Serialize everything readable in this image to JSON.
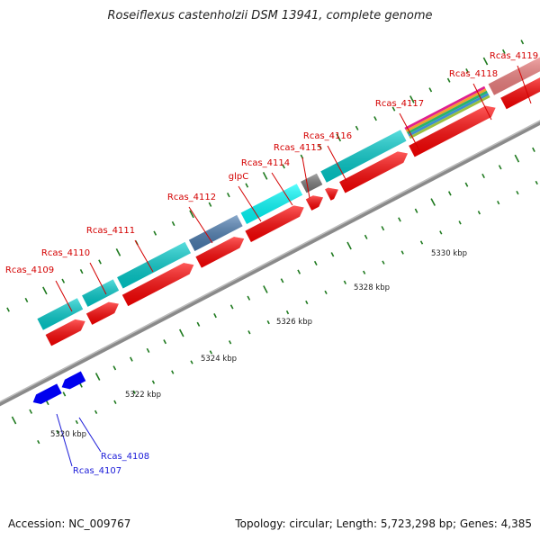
{
  "title": "Roseiflexus castenholzii DSM 13941, complete genome",
  "footer": {
    "accession": "Accession: NC_009767",
    "topology": "Topology: circular; Length: 5,723,298 bp; Genes: 4,385"
  },
  "scale_labels": [
    "5320 kbp",
    "5322 kbp",
    "5324 kbp",
    "5326 kbp",
    "5328 kbp",
    "5330 kbp"
  ],
  "colors": {
    "red": "#ff0000",
    "cyan": "#00cccc",
    "bright_cyan": "#00ffff",
    "steel_blue": "#4a7bb0",
    "dark_gray": "#777777",
    "salmon": "#f08080",
    "olive": "#c8c090",
    "blue": "#0000ee",
    "backbone": "#8a8a8a",
    "tick_green": "#1f7a1f",
    "label_red": "#d40000",
    "label_blue": "#1a1ad8"
  },
  "genes_forward": [
    {
      "name": "Rcas_4109",
      "color": "red"
    },
    {
      "name": "Rcas_4110",
      "color": "red"
    },
    {
      "name": "Rcas_4111",
      "color": "red"
    },
    {
      "name": "Rcas_4112",
      "color": "red"
    },
    {
      "name": "glpC",
      "color": "red"
    },
    {
      "name": "Rcas_4114",
      "color": "red"
    },
    {
      "name": "Rcas_4115",
      "color": "red"
    },
    {
      "name": "Rcas_4116",
      "color": "red"
    },
    {
      "name": "Rcas_4117",
      "color": "red"
    },
    {
      "name": "Rcas_4118",
      "color": "red"
    },
    {
      "name": "Rcas_4119",
      "color": "red"
    }
  ],
  "genes_reverse": [
    {
      "name": "Rcas_4107",
      "color": "blue"
    },
    {
      "name": "Rcas_4108",
      "color": "blue"
    }
  ]
}
